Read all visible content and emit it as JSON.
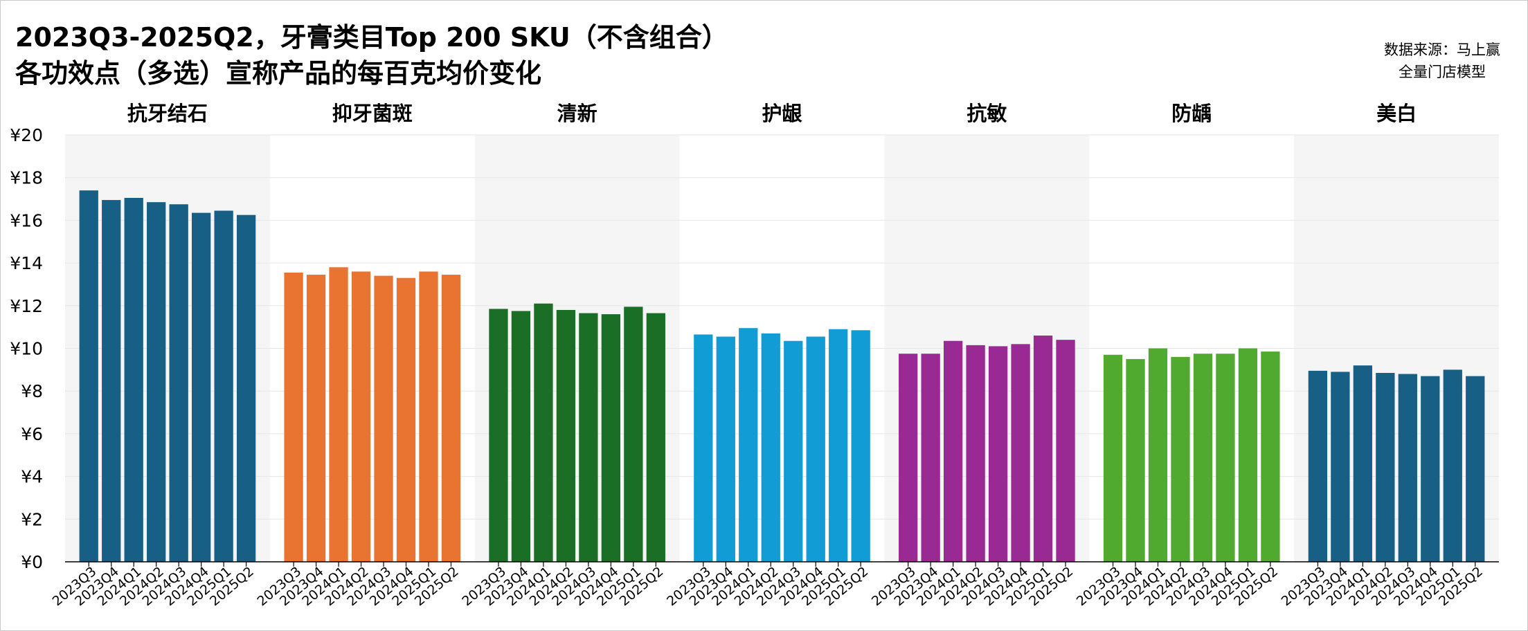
{
  "title_line1": "2023Q3-2025Q2，牙膏类目Top 200 SKU（不含组合）",
  "title_line2": "各功效点（多选）宣称产品的每百克均价变化",
  "source_line1": "数据来源：马上赢",
  "source_line2": "全量门店模型",
  "chart_data": {
    "type": "bar",
    "y_tick_labels": [
      "¥0",
      "¥2",
      "¥4",
      "¥6",
      "¥8",
      "¥10",
      "¥12",
      "¥14",
      "¥16",
      "¥18",
      "¥20"
    ],
    "ylim": [
      0,
      20
    ],
    "grid": "horizontal",
    "categories": [
      "2023Q3",
      "2023Q4",
      "2024Q1",
      "2024Q2",
      "2024Q3",
      "2024Q4",
      "2025Q1",
      "2025Q2"
    ],
    "panels": [
      {
        "name": "抗牙结石",
        "color": "#175f84",
        "values": [
          17.4,
          16.95,
          17.05,
          16.85,
          16.75,
          16.35,
          16.45,
          16.25
        ]
      },
      {
        "name": "抑牙菌斑",
        "color": "#e97331",
        "values": [
          13.55,
          13.45,
          13.8,
          13.6,
          13.4,
          13.3,
          13.6,
          13.45
        ]
      },
      {
        "name": "清新",
        "color": "#1b6e26",
        "values": [
          11.85,
          11.75,
          12.1,
          11.8,
          11.65,
          11.6,
          11.95,
          11.65
        ]
      },
      {
        "name": "护龈",
        "color": "#129cd6",
        "values": [
          10.65,
          10.55,
          10.95,
          10.7,
          10.35,
          10.55,
          10.9,
          10.85
        ]
      },
      {
        "name": "抗敏",
        "color": "#9a2a93",
        "values": [
          9.75,
          9.75,
          10.35,
          10.15,
          10.1,
          10.2,
          10.6,
          10.4
        ]
      },
      {
        "name": "防龋",
        "color": "#4faa2f",
        "values": [
          9.7,
          9.5,
          10.0,
          9.6,
          9.75,
          9.75,
          10.0,
          9.85
        ]
      },
      {
        "name": "美白",
        "color": "#175f84",
        "values": [
          8.95,
          8.9,
          9.2,
          8.85,
          8.8,
          8.7,
          9.0,
          8.7
        ]
      }
    ]
  }
}
